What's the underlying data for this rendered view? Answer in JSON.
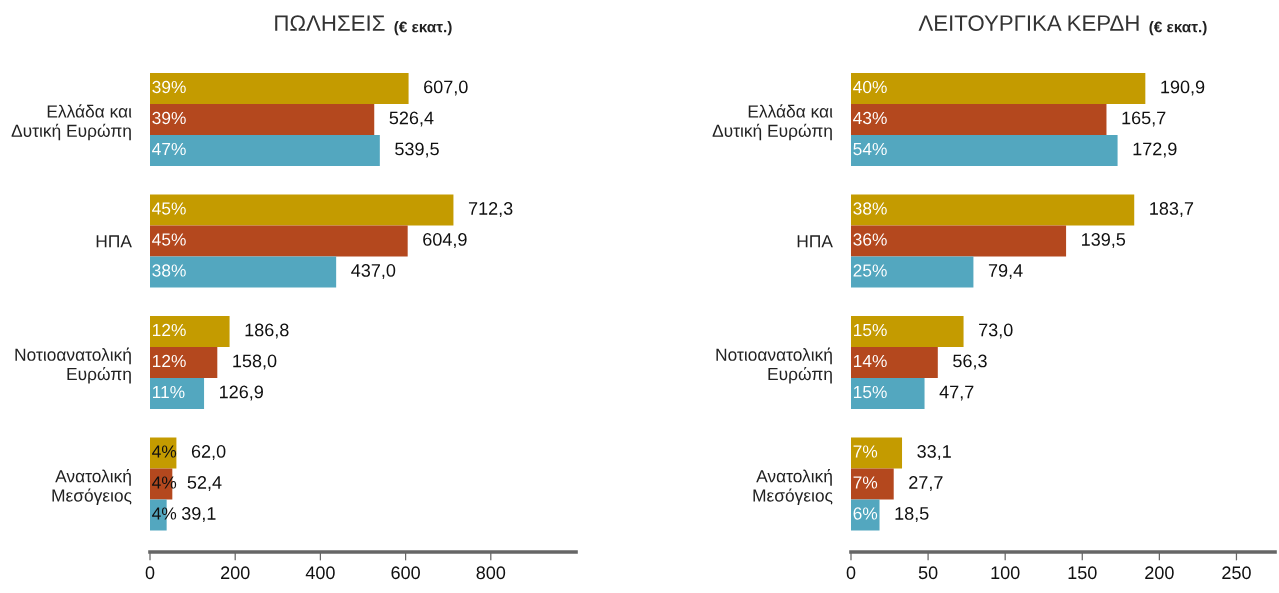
{
  "chart_data": [
    {
      "type": "bar",
      "orientation": "horizontal",
      "title": "ΠΩΛΗΣΕΙΣ",
      "subtitle": "(€ εκατ.)",
      "categories": [
        "Ελλάδα και\nΔυτική Ευρώπη",
        "ΗΠΑ",
        "Νοτιοανατολική\nΕυρώπη",
        "Ανατολική\nΜεσόγειος"
      ],
      "series": [
        {
          "color": "#c49b00",
          "values": [
            607.0,
            712.3,
            186.8,
            62.0
          ],
          "value_labels": [
            "607,0",
            "712,3",
            "186,8",
            "62,0"
          ]
        },
        {
          "color": "#b4481e",
          "values": [
            526.4,
            604.9,
            158.0,
            52.4
          ],
          "value_labels": [
            "526,4",
            "604,9",
            "158,0",
            "52,4"
          ]
        },
        {
          "color": "#53a7bf",
          "values": [
            539.5,
            437.0,
            126.9,
            39.1
          ],
          "value_labels": [
            "539,5",
            "437,0",
            "126,9",
            "39,1"
          ]
        }
      ],
      "annotations": [
        "39%",
        "39%",
        "47%",
        "45%",
        "45%",
        "38%",
        "12%",
        "12%",
        "11%",
        "4%",
        "4%",
        "4%"
      ],
      "xlim": [
        0,
        1000
      ],
      "xticks": [
        0,
        200,
        400,
        600,
        800
      ]
    },
    {
      "type": "bar",
      "orientation": "horizontal",
      "title": "ΛΕΙΤΟΥΡΓΙΚΑ ΚΕΡΔΗ",
      "subtitle": "(€ εκατ.)",
      "categories": [
        "Ελλάδα και\nΔυτική Ευρώπη",
        "ΗΠΑ",
        "Νοτιοανατολική\nΕυρώπη",
        "Ανατολική\nΜεσόγειος"
      ],
      "series": [
        {
          "color": "#c49b00",
          "values": [
            190.9,
            183.7,
            73.0,
            33.1
          ],
          "value_labels": [
            "190,9",
            "183,7",
            "73,0",
            "33,1"
          ]
        },
        {
          "color": "#b4481e",
          "values": [
            165.7,
            139.5,
            56.3,
            27.7
          ],
          "value_labels": [
            "165,7",
            "139,5",
            "56,3",
            "27,7"
          ]
        },
        {
          "color": "#53a7bf",
          "values": [
            172.9,
            79.4,
            47.7,
            18.5
          ],
          "value_labels": [
            "172,9",
            "79,4",
            "47,7",
            "18,5"
          ]
        }
      ],
      "annotations": [
        "40%",
        "43%",
        "54%",
        "38%",
        "36%",
        "25%",
        "15%",
        "14%",
        "15%",
        "7%",
        "7%",
        "6%"
      ],
      "xlim": [
        0,
        275
      ],
      "xticks": [
        0,
        50,
        100,
        150,
        200,
        250
      ]
    }
  ]
}
